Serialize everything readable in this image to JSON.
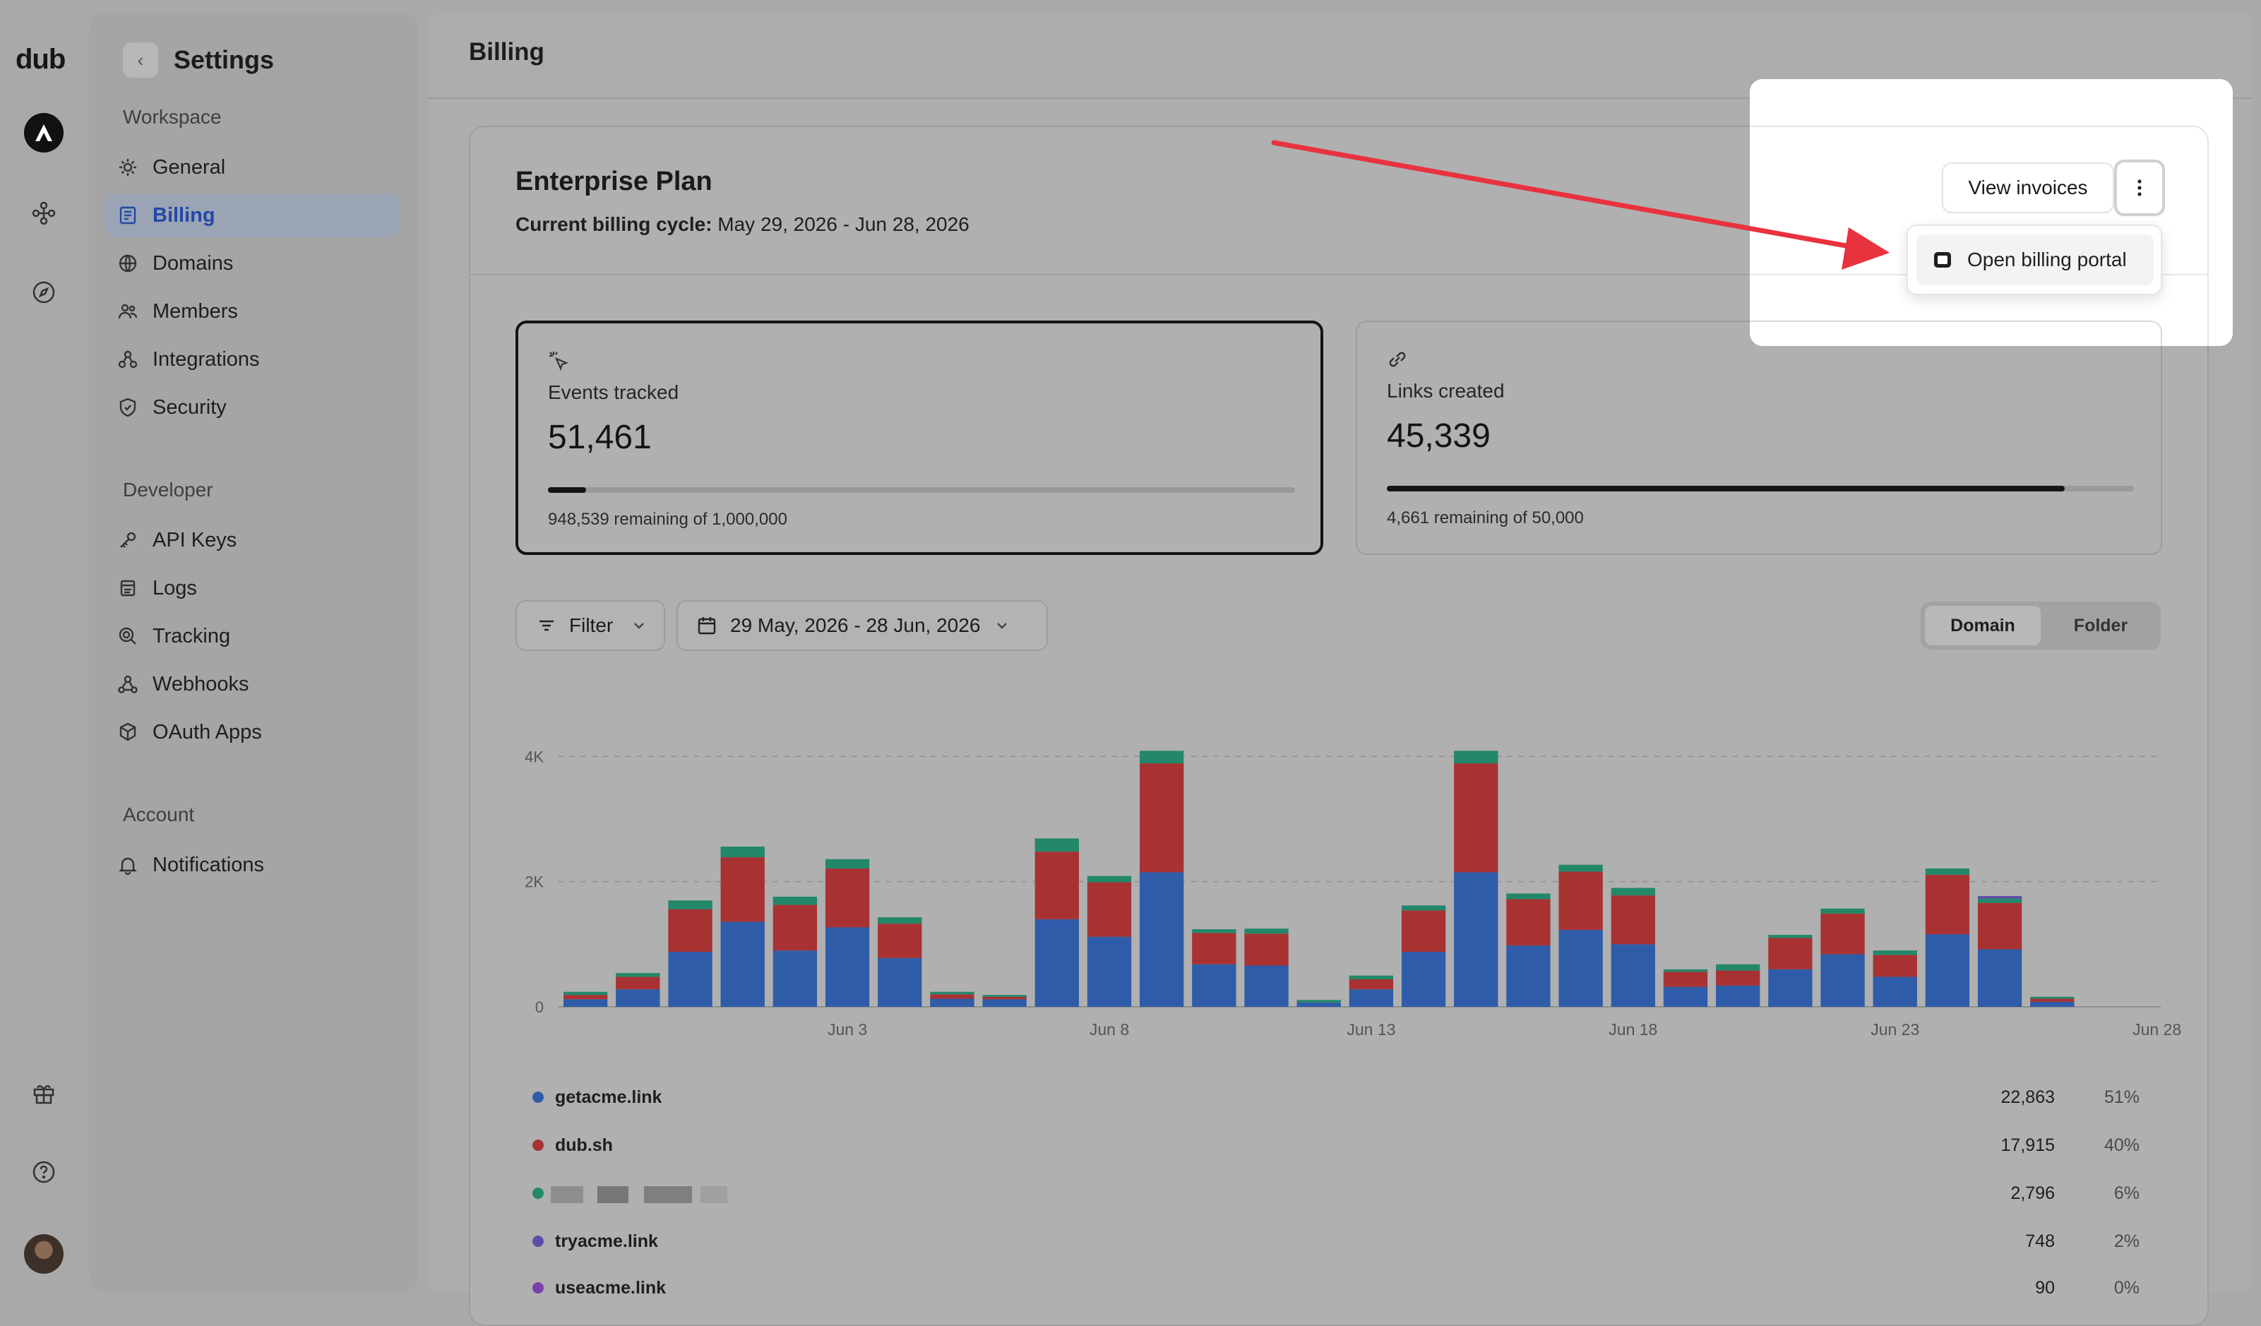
{
  "rail": {
    "logo": "dub",
    "icons": [
      "workspace-logo-icon",
      "integrations-icon",
      "explore-icon",
      "gift-icon",
      "help-icon",
      "user-avatar"
    ]
  },
  "sidebar": {
    "title": "Settings",
    "sections": [
      {
        "label": "Workspace",
        "items": [
          {
            "label": "General",
            "icon": "gear-icon"
          },
          {
            "label": "Billing",
            "icon": "receipt-icon",
            "active": true
          },
          {
            "label": "Domains",
            "icon": "globe-icon"
          },
          {
            "label": "Members",
            "icon": "users-icon"
          },
          {
            "label": "Integrations",
            "icon": "integrations-icon"
          },
          {
            "label": "Security",
            "icon": "shield-icon"
          }
        ]
      },
      {
        "label": "Developer",
        "items": [
          {
            "label": "API Keys",
            "icon": "key-icon"
          },
          {
            "label": "Logs",
            "icon": "logs-icon"
          },
          {
            "label": "Tracking",
            "icon": "tracking-icon"
          },
          {
            "label": "Webhooks",
            "icon": "webhook-icon"
          },
          {
            "label": "OAuth Apps",
            "icon": "cube-icon"
          }
        ]
      },
      {
        "label": "Account",
        "items": [
          {
            "label": "Notifications",
            "icon": "bell-icon"
          }
        ]
      }
    ]
  },
  "main": {
    "title": "Billing",
    "plan": {
      "name": "Enterprise Plan",
      "cycle_label": "Current billing cycle:",
      "cycle_value": "May 29, 2026 - Jun 28, 2026"
    },
    "actions": {
      "view_invoices": "View invoices",
      "more_icon": "more-vertical-icon",
      "menu_item": "Open billing portal",
      "menu_icon": "credit-card-icon"
    },
    "usage": [
      {
        "label": "Events tracked",
        "value": "51,461",
        "sub": "948,539 remaining of 1,000,000",
        "fraction": 0.051,
        "icon": "cursor-click-icon"
      },
      {
        "label": "Links created",
        "value": "45,339",
        "sub": "4,661 remaining of 50,000",
        "fraction": 0.907,
        "icon": "link-icon"
      }
    ],
    "filter_label": "Filter",
    "date_range": "29 May, 2026 - 28 Jun, 2026",
    "toggle": {
      "a": "Domain",
      "b": "Folder",
      "selected": "Domain"
    },
    "legend": [
      {
        "name": "getacme.link",
        "value": "22,863",
        "pct": "51%",
        "color": "#2f5ca8"
      },
      {
        "name": "dub.sh",
        "value": "17,915",
        "pct": "40%",
        "color": "#a83232"
      },
      {
        "name": "",
        "value": "2,796",
        "pct": "6%",
        "color": "#23876a",
        "redacted": true
      },
      {
        "name": "tryacme.link",
        "value": "748",
        "pct": "2%",
        "color": "#5a4fa8"
      },
      {
        "name": "useacme.link",
        "value": "90",
        "pct": "0%",
        "color": "#7b3fa8"
      }
    ]
  },
  "chart_data": {
    "type": "bar",
    "stacked": true,
    "x_ticks": [
      "Jun 3",
      "Jun 8",
      "Jun 13",
      "Jun 18",
      "Jun 23",
      "Jun 28"
    ],
    "y_ticks": [
      "0",
      "2K",
      "4K"
    ],
    "ylim": [
      0,
      4200
    ],
    "categories": [
      "May 29",
      "May 30",
      "May 31",
      "Jun 1",
      "Jun 2",
      "Jun 3",
      "Jun 4",
      "Jun 5",
      "Jun 6",
      "Jun 7",
      "Jun 8",
      "Jun 9",
      "Jun 10",
      "Jun 11",
      "Jun 12",
      "Jun 13",
      "Jun 14",
      "Jun 15",
      "Jun 16",
      "Jun 17",
      "Jun 18",
      "Jun 19",
      "Jun 20",
      "Jun 21",
      "Jun 22",
      "Jun 23",
      "Jun 24",
      "Jun 25",
      "Jun 26",
      "Jun 27",
      "Jun 28"
    ],
    "series": [
      {
        "name": "getacme.link",
        "color": "#2f5ca8",
        "values": [
          120,
          280,
          880,
          1360,
          900,
          1270,
          780,
          130,
          120,
          1400,
          1120,
          2150,
          680,
          660,
          70,
          280,
          880,
          2150,
          980,
          1230,
          1000,
          320,
          340,
          600,
          840,
          480,
          1160,
          920,
          80,
          0,
          0
        ]
      },
      {
        "name": "dub.sh",
        "color": "#a83232",
        "values": [
          70,
          200,
          680,
          1030,
          730,
          940,
          550,
          70,
          40,
          1080,
          870,
          1740,
          500,
          510,
          0,
          160,
          660,
          1740,
          740,
          930,
          780,
          240,
          240,
          500,
          650,
          350,
          950,
          740,
          50,
          0,
          0
        ]
      },
      {
        "name": "",
        "color": "#23876a",
        "values": [
          50,
          60,
          140,
          170,
          130,
          150,
          100,
          40,
          30,
          210,
          100,
          200,
          60,
          80,
          40,
          60,
          80,
          200,
          90,
          110,
          120,
          40,
          100,
          50,
          80,
          70,
          100,
          70,
          30,
          0,
          0
        ]
      },
      {
        "name": "tryacme.link",
        "color": "#5a4fa8",
        "values": [
          0,
          0,
          0,
          0,
          0,
          0,
          0,
          0,
          0,
          0,
          0,
          0,
          0,
          0,
          0,
          0,
          0,
          0,
          0,
          0,
          0,
          0,
          0,
          0,
          0,
          0,
          0,
          40,
          0,
          0,
          0
        ]
      }
    ]
  }
}
